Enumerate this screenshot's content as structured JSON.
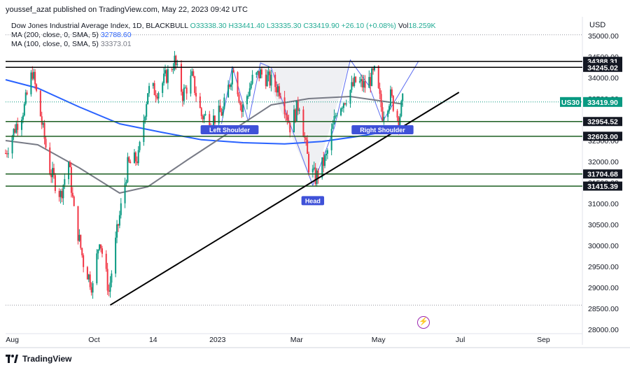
{
  "header": {
    "published_line": "youssef_azat published on TradingView.com, May 22, 2023 09:42 UTC",
    "instrument": "Dow Jones Industrial Average Index, 1D, BLACKBULL",
    "ohlc": "O33338.30  H33441.40  L33335.30  C33419.90  +26.10 (+0.08%)",
    "vol_label": "Vol",
    "vol_value": "18.259K",
    "currency": "USD"
  },
  "indicators": [
    {
      "label": "MA (200, close, 0, SMA, 5)",
      "value": "32788.60",
      "color": "#2962ff"
    },
    {
      "label": "MA (100, close, 0, SMA, 5)",
      "value": "33373.01",
      "color": "#787b86"
    }
  ],
  "footer": {
    "brand": "TradingView"
  },
  "chart_data": {
    "type": "candlestick",
    "symbol_badge": "US30",
    "last_price": "33419.90",
    "y_ticks": [
      35000,
      34500,
      34000,
      33500,
      33000,
      32500,
      32000,
      31500,
      31000,
      30500,
      30000,
      29500,
      29000,
      28500,
      28000
    ],
    "y_tick_labels": [
      "35000.00",
      "34500.00",
      "34000.00",
      "33500.00",
      "33000.00",
      "32500.00",
      "32000.00",
      "31500.00",
      "31000.00",
      "30500.00",
      "30000.00",
      "29500.00",
      "29000.00",
      "28500.00",
      "28000.00"
    ],
    "ylim": [
      27900,
      35450
    ],
    "x_tick_labels": [
      "Aug",
      "Oct",
      "14",
      "2023",
      "Mar",
      "May",
      "Jul",
      "Sep"
    ],
    "x_tick_dates": [
      "2022-08-01",
      "2022-10-01",
      "2022-11-14",
      "2023-01-01",
      "2023-03-01",
      "2023-05-01",
      "2023-07-01",
      "2023-09-01"
    ],
    "xlim": [
      "2022-07-27",
      "2023-09-30"
    ],
    "up_color": "#089981",
    "down_color": "#f23645",
    "grid": false,
    "horizontal_levels": [
      {
        "value": 34388.31,
        "label": "34388.31",
        "color": "#000000"
      },
      {
        "value": 34245.02,
        "label": "34245.02",
        "color": "#000000"
      },
      {
        "value": 32954.52,
        "label": "32954.52",
        "color": "#1b5e20"
      },
      {
        "value": 32603.0,
        "label": "32603.00",
        "color": "#1b5e20"
      },
      {
        "value": 31704.68,
        "label": "31704.68",
        "color": "#1b5e20"
      },
      {
        "value": 31415.39,
        "label": "31415.39",
        "color": "#1b5e20"
      }
    ],
    "trendline": {
      "from": [
        "2022-10-13",
        28580
      ],
      "to": [
        "2023-06-30",
        33650
      ],
      "color": "#000000"
    },
    "pattern_labels": [
      {
        "text": "Left Shoulder",
        "date": "2023-01-10",
        "value": 32750
      },
      {
        "text": "Head",
        "date": "2023-03-13",
        "value": 31060
      },
      {
        "text": "Right Shoulder",
        "date": "2023-05-04",
        "value": 32750
      }
    ],
    "pattern_points": [
      [
        "2023-01-04",
        32900
      ],
      [
        "2023-01-12",
        34270
      ],
      [
        "2023-01-24",
        32950
      ],
      [
        "2023-02-02",
        34350
      ],
      [
        "2023-02-10",
        34240
      ],
      [
        "2023-02-24",
        32900
      ],
      [
        "2023-03-13",
        31430
      ],
      [
        "2023-03-29",
        32800
      ],
      [
        "2023-04-10",
        34420
      ],
      [
        "2023-04-24",
        33800
      ],
      [
        "2023-05-04",
        32950
      ],
      [
        "2023-05-31",
        34400
      ]
    ],
    "dotted_levels": [
      {
        "value": 35020,
        "label": ""
      },
      {
        "value": 28580,
        "label": ""
      }
    ],
    "series": [
      {
        "name": "Price",
        "kind": "ohlc",
        "close_path": [
          [
            "2022-07-27",
            32200
          ],
          [
            "2022-08-03",
            32800
          ],
          [
            "2022-08-10",
            33300
          ],
          [
            "2022-08-16",
            34150
          ],
          [
            "2022-08-22",
            33100
          ],
          [
            "2022-08-29",
            31800
          ],
          [
            "2022-09-06",
            31200
          ],
          [
            "2022-09-12",
            32000
          ],
          [
            "2022-09-16",
            30800
          ],
          [
            "2022-09-23",
            29600
          ],
          [
            "2022-09-30",
            29000
          ],
          [
            "2022-10-05",
            30200
          ],
          [
            "2022-10-12",
            28900
          ],
          [
            "2022-10-18",
            30300
          ],
          [
            "2022-10-26",
            31900
          ],
          [
            "2022-11-03",
            32100
          ],
          [
            "2022-11-10",
            33700
          ],
          [
            "2022-11-18",
            33700
          ],
          [
            "2022-11-30",
            34400
          ],
          [
            "2022-12-06",
            33600
          ],
          [
            "2022-12-13",
            34000
          ],
          [
            "2022-12-20",
            33100
          ],
          [
            "2022-12-28",
            33000
          ],
          [
            "2023-01-05",
            33200
          ],
          [
            "2023-01-13",
            34300
          ],
          [
            "2023-01-19",
            33200
          ],
          [
            "2023-01-27",
            33950
          ],
          [
            "2023-02-02",
            34100
          ],
          [
            "2023-02-10",
            33900
          ],
          [
            "2023-02-17",
            33700
          ],
          [
            "2023-02-24",
            32850
          ],
          [
            "2023-03-03",
            33400
          ],
          [
            "2023-03-10",
            31900
          ],
          [
            "2023-03-15",
            31600
          ],
          [
            "2023-03-23",
            32100
          ],
          [
            "2023-03-31",
            33250
          ],
          [
            "2023-04-06",
            33500
          ],
          [
            "2023-04-14",
            33900
          ],
          [
            "2023-04-21",
            33800
          ],
          [
            "2023-04-28",
            34100
          ],
          [
            "2023-05-04",
            33150
          ],
          [
            "2023-05-10",
            33550
          ],
          [
            "2023-05-16",
            33000
          ],
          [
            "2023-05-19",
            33420
          ]
        ]
      },
      {
        "name": "MA (200, close, 0, SMA, 5)",
        "color": "#2962ff",
        "points": [
          [
            "2022-07-27",
            33950
          ],
          [
            "2022-08-20",
            33750
          ],
          [
            "2022-09-20",
            33300
          ],
          [
            "2022-10-20",
            32900
          ],
          [
            "2022-11-20",
            32700
          ],
          [
            "2022-12-20",
            32520
          ],
          [
            "2023-01-20",
            32450
          ],
          [
            "2023-02-20",
            32420
          ],
          [
            "2023-03-20",
            32480
          ],
          [
            "2023-04-20",
            32620
          ],
          [
            "2023-05-19",
            32780
          ]
        ]
      },
      {
        "name": "MA (100, close, 0, SMA, 5)",
        "color": "#787b86",
        "points": [
          [
            "2022-07-27",
            32500
          ],
          [
            "2022-08-20",
            32400
          ],
          [
            "2022-09-20",
            31850
          ],
          [
            "2022-10-20",
            31250
          ],
          [
            "2022-11-10",
            31400
          ],
          [
            "2022-12-10",
            32050
          ],
          [
            "2023-01-10",
            32700
          ],
          [
            "2023-02-10",
            33350
          ],
          [
            "2023-03-10",
            33500
          ],
          [
            "2023-04-10",
            33550
          ],
          [
            "2023-05-19",
            33370
          ]
        ]
      }
    ]
  }
}
